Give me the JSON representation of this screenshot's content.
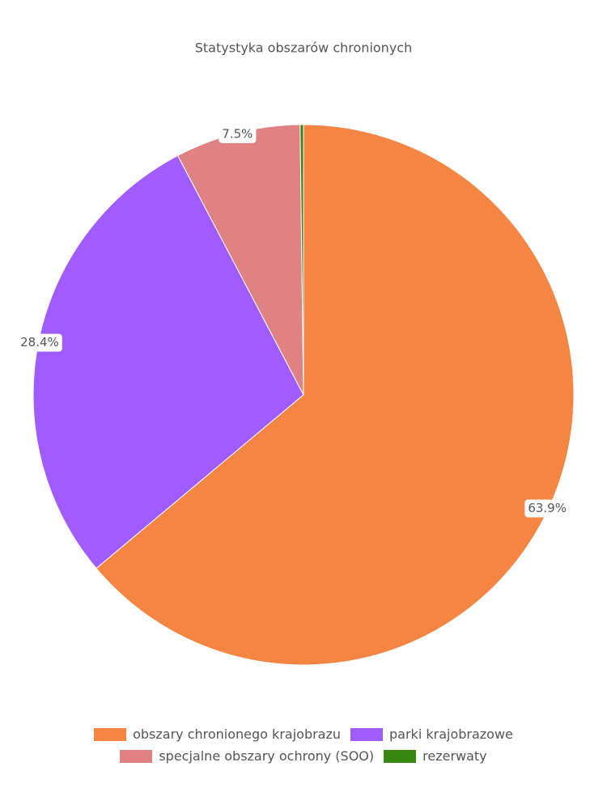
{
  "chart_data": {
    "type": "pie",
    "title": "Statystyka obszarów chronionych",
    "categories": [
      "obszary chronionego krajobrazu",
      "parki krajobrazowe",
      "specjalne obszary ochrony (SOO)",
      "rezerwaty"
    ],
    "values": [
      63.9,
      28.4,
      7.5,
      0.2
    ],
    "value_labels": [
      "63.9%",
      "28.4%",
      "7.5%",
      null
    ],
    "colors": [
      "#f48542",
      "#a05cff",
      "#e08283",
      "#3a8613"
    ]
  }
}
